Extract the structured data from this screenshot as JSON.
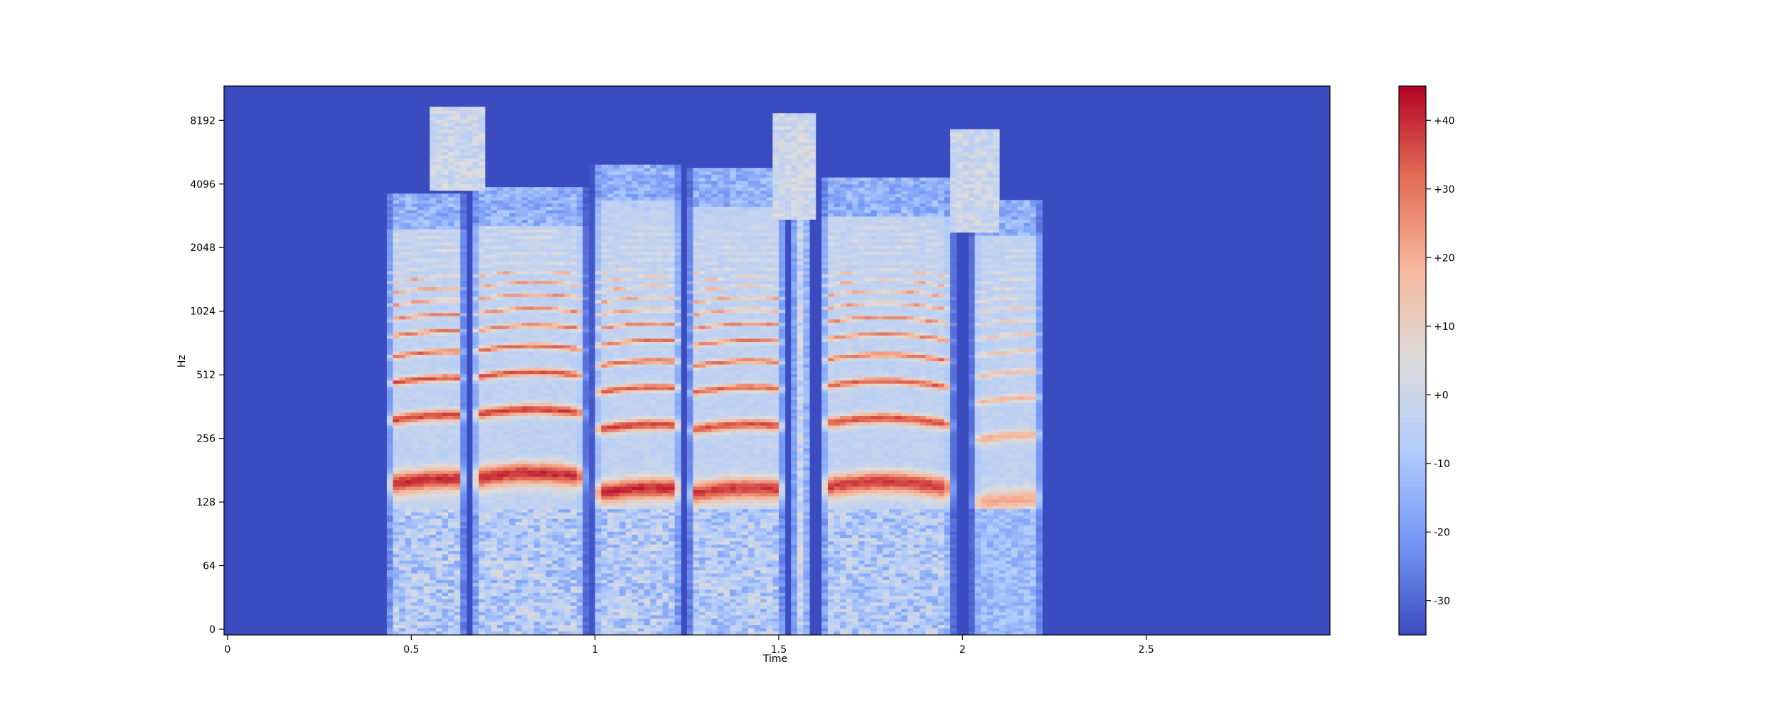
{
  "chart_data": {
    "type": "heatmap",
    "title": "",
    "xlabel": "Time",
    "ylabel": "Hz",
    "y_scale": "symlog",
    "xlim": [
      0,
      3.0
    ],
    "ylim": [
      0,
      11025
    ],
    "x_ticks": [
      {
        "value": 0,
        "label": "0"
      },
      {
        "value": 0.5,
        "label": "0.5"
      },
      {
        "value": 1,
        "label": "1"
      },
      {
        "value": 1.5,
        "label": "1.5"
      },
      {
        "value": 2,
        "label": "2"
      },
      {
        "value": 2.5,
        "label": "2.5"
      }
    ],
    "y_ticks": [
      {
        "value": 0,
        "label": "0"
      },
      {
        "value": 64,
        "label": "64"
      },
      {
        "value": 128,
        "label": "128"
      },
      {
        "value": 256,
        "label": "256"
      },
      {
        "value": 512,
        "label": "512"
      },
      {
        "value": 1024,
        "label": "1024"
      },
      {
        "value": 2048,
        "label": "2048"
      },
      {
        "value": 4096,
        "label": "4096"
      },
      {
        "value": 8192,
        "label": "8192"
      }
    ],
    "colorbar": {
      "range": [
        -35,
        45
      ],
      "ticks": [
        {
          "value": -30,
          "label": "-30"
        },
        {
          "value": -20,
          "label": "-20"
        },
        {
          "value": -10,
          "label": "-10"
        },
        {
          "value": 0,
          "label": "+0"
        },
        {
          "value": 10,
          "label": "+10"
        },
        {
          "value": 20,
          "label": "+20"
        },
        {
          "value": 30,
          "label": "+30"
        },
        {
          "value": 40,
          "label": "+40"
        }
      ],
      "colormap": "coolwarm",
      "colors": [
        "#3b4cc0",
        "#7396f5",
        "#b0cbfc",
        "#dddcdc",
        "#f6b89c",
        "#e36c55",
        "#b40426"
      ]
    },
    "background_db": -35,
    "segments": [
      {
        "start": 0.43,
        "end": 0.65,
        "f0": 155,
        "strength": 1.0,
        "hf_top": 2500
      },
      {
        "start": 0.66,
        "end": 0.98,
        "f0": 165,
        "strength": 1.0,
        "hf_top": 2600
      },
      {
        "start": 0.99,
        "end": 1.24,
        "f0": 140,
        "strength": 1.0,
        "hf_top": 3400
      },
      {
        "start": 1.25,
        "end": 1.52,
        "f0": 140,
        "strength": 0.95,
        "hf_top": 3200
      },
      {
        "start": 1.53,
        "end": 1.59,
        "f0": 0,
        "strength": 0.4,
        "hf_top": 8600
      },
      {
        "start": 1.61,
        "end": 1.98,
        "f0": 150,
        "strength": 0.95,
        "hf_top": 2900
      },
      {
        "start": 2.02,
        "end": 2.22,
        "f0": 125,
        "strength": 0.55,
        "hf_top": 2300
      }
    ],
    "fricative_bursts": [
      {
        "start": 0.55,
        "end": 0.7,
        "f_low": 3800,
        "f_high": 9500
      },
      {
        "start": 1.48,
        "end": 1.6,
        "f_low": 2800,
        "f_high": 9000
      },
      {
        "start": 1.97,
        "end": 2.1,
        "f_low": 2400,
        "f_high": 7500
      }
    ]
  }
}
